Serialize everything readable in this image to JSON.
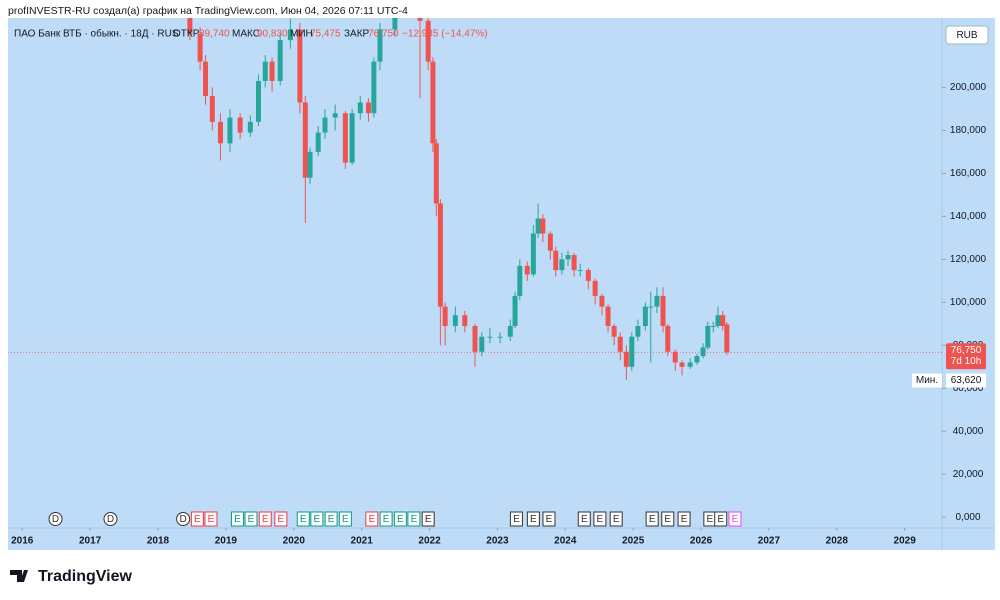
{
  "header": "profINVESTR-RU создал(а) график на TradingView.com, Июн 04, 2026 07:11 UTC-4",
  "brand": "TradingView",
  "chart_data": {
    "type": "candlestick",
    "title": "ПАО Банк ВТБ · обыкн. · 18Д · RUS",
    "legend": {
      "open_label": "ОТКР",
      "open": "89,740",
      "high_label": "МАКС",
      "high": "90,830",
      "low_label": "МИН",
      "low": "75,475",
      "close_label": "ЗАКР",
      "close": "76,750",
      "change": "−12,985 (−14,47%)"
    },
    "currency": "RUB",
    "up_color": "#26a69a",
    "down_color": "#ef5350",
    "x": [
      2018.47,
      2018.62,
      2018.7,
      2018.8,
      2018.92,
      2019.06,
      2019.21,
      2019.36,
      2019.48,
      2019.58,
      2019.68,
      2019.8,
      2019.95,
      2020.09,
      2020.17,
      2020.24,
      2020.36,
      2020.46,
      2020.61,
      2020.76,
      2020.86,
      2020.98,
      2021.1,
      2021.18,
      2021.27,
      2021.49,
      2021.71,
      2021.86,
      2021.98,
      2022.05,
      2022.1,
      2022.16,
      2022.23,
      2022.38,
      2022.52,
      2022.67,
      2022.77,
      2022.89,
      2023.04,
      2023.19,
      2023.26,
      2023.33,
      2023.44,
      2023.53,
      2023.6,
      2023.67,
      2023.78,
      2023.86,
      2023.95,
      2024.04,
      2024.13,
      2024.22,
      2024.34,
      2024.44,
      2024.54,
      2024.63,
      2024.72,
      2024.81,
      2024.9,
      2024.98,
      2025.07,
      2025.18,
      2025.26,
      2025.35,
      2025.44,
      2025.51,
      2025.62,
      2025.72,
      2025.84,
      2025.94,
      2026.03,
      2026.1,
      2026.18,
      2026.25,
      2026.32,
      2026.38
    ],
    "open": [
      236,
      225,
      212,
      196,
      184,
      174,
      186,
      179,
      184,
      203,
      212,
      203,
      222,
      227,
      193,
      158,
      170,
      179,
      186,
      188,
      165,
      188,
      193,
      188,
      212,
      227,
      240,
      245,
      231,
      212,
      174,
      146,
      98,
      89,
      94,
      89,
      77,
      84,
      84,
      84,
      89,
      103,
      117,
      113,
      132,
      139,
      132,
      124,
      115,
      120,
      122,
      115,
      115,
      110,
      103,
      98,
      89,
      84,
      77,
      70,
      84,
      89,
      98,
      98,
      103,
      89,
      77,
      72,
      70,
      72,
      75,
      79,
      89,
      89,
      94,
      89.74
    ],
    "high": [
      245,
      228,
      215,
      200,
      188,
      190,
      188,
      187,
      206,
      215,
      214,
      225,
      232,
      230,
      196,
      172,
      182,
      190,
      192,
      189,
      190,
      196,
      195,
      214,
      230,
      245,
      250,
      248,
      234,
      214,
      176,
      148,
      100,
      98,
      96,
      90,
      86,
      88,
      86,
      92,
      105,
      120,
      119,
      136,
      146,
      141,
      133,
      126,
      123,
      124,
      123,
      118,
      116,
      111,
      104,
      99,
      90,
      86,
      80,
      86,
      92,
      100,
      105,
      107,
      107,
      90,
      78,
      73,
      74,
      76,
      81,
      91,
      91,
      98,
      96,
      90.83
    ],
    "low": [
      222,
      208,
      192,
      180,
      166,
      170,
      176,
      177,
      182,
      200,
      198,
      201,
      218,
      188,
      137,
      155,
      168,
      176,
      180,
      162,
      164,
      185,
      184,
      186,
      208,
      224,
      235,
      195,
      208,
      170,
      140,
      80,
      80,
      86,
      86,
      70,
      75,
      81,
      81,
      82,
      88,
      101,
      110,
      112,
      130,
      128,
      120,
      112,
      113,
      117,
      112,
      112,
      106,
      99,
      94,
      86,
      80,
      73,
      64,
      68,
      82,
      87,
      72,
      95,
      86,
      75,
      68,
      66,
      69,
      71,
      74,
      78,
      86,
      88,
      87,
      75.475
    ],
    "close": [
      225,
      212,
      196,
      184,
      174,
      186,
      179,
      184,
      203,
      212,
      203,
      222,
      227,
      193,
      158,
      170,
      179,
      186,
      188,
      165,
      188,
      193,
      188,
      212,
      227,
      240,
      245,
      231,
      212,
      174,
      146,
      98,
      89,
      94,
      89,
      77,
      84,
      84,
      84,
      89,
      103,
      117,
      113,
      132,
      139,
      132,
      124,
      115,
      120,
      122,
      115,
      115,
      110,
      103,
      98,
      89,
      84,
      77,
      70,
      84,
      89,
      98,
      98,
      103,
      89,
      77,
      72,
      70,
      72,
      75,
      79,
      89,
      89,
      94,
      89,
      76.75
    ],
    "xlim": [
      2015.79,
      2029.55
    ],
    "xticks": [
      2016,
      2017,
      2018,
      2019,
      2020,
      2021,
      2022,
      2023,
      2024,
      2025,
      2026,
      2027,
      2028,
      2029
    ],
    "ylim": [
      -5,
      232.3
    ],
    "yticks": [
      {
        "value": 0,
        "label": "0,000"
      },
      {
        "value": 20,
        "label": "20,000"
      },
      {
        "value": 40,
        "label": "40,000"
      },
      {
        "value": 60,
        "label": "60,000"
      },
      {
        "value": 80,
        "label": "80,000"
      },
      {
        "value": 100,
        "label": "100,000"
      },
      {
        "value": 120,
        "label": "120,000"
      },
      {
        "value": 140,
        "label": "140,000"
      },
      {
        "value": 160,
        "label": "160,000"
      },
      {
        "value": 180,
        "label": "180,000"
      },
      {
        "value": 200,
        "label": "200,000"
      }
    ],
    "last_price": {
      "value": 76.75,
      "label": "76,750",
      "countdown": "7d 10h"
    },
    "min_marker": {
      "name": "Мин.",
      "value": 63.62,
      "label": "63,620"
    },
    "events": [
      {
        "x": 2016.49,
        "label": "D",
        "color": "#333333"
      },
      {
        "x": 2017.3,
        "label": "D",
        "color": "#333333"
      },
      {
        "x": 2018.37,
        "label": "D",
        "color": "#333333"
      },
      {
        "x": 2018.58,
        "label": "E",
        "color": "#f23645"
      },
      {
        "x": 2018.78,
        "label": "E",
        "color": "#f23645"
      },
      {
        "x": 2019.17,
        "label": "E",
        "color": "#089981"
      },
      {
        "x": 2019.37,
        "label": "E",
        "color": "#089981"
      },
      {
        "x": 2019.58,
        "label": "E",
        "color": "#f23645"
      },
      {
        "x": 2019.81,
        "label": "E",
        "color": "#f23645"
      },
      {
        "x": 2020.14,
        "label": "E",
        "color": "#089981"
      },
      {
        "x": 2020.34,
        "label": "E",
        "color": "#089981"
      },
      {
        "x": 2020.55,
        "label": "E",
        "color": "#089981"
      },
      {
        "x": 2020.76,
        "label": "E",
        "color": "#089981"
      },
      {
        "x": 2021.15,
        "label": "E",
        "color": "#f23645"
      },
      {
        "x": 2021.36,
        "label": "E",
        "color": "#089981"
      },
      {
        "x": 2021.57,
        "label": "E",
        "color": "#089981"
      },
      {
        "x": 2021.77,
        "label": "E",
        "color": "#089981"
      },
      {
        "x": 2021.98,
        "label": "E",
        "color": "#333333"
      },
      {
        "x": 2023.28,
        "label": "E",
        "color": "#333333"
      },
      {
        "x": 2023.53,
        "label": "E",
        "color": "#333333"
      },
      {
        "x": 2023.76,
        "label": "E",
        "color": "#333333"
      },
      {
        "x": 2024.28,
        "label": "E",
        "color": "#333333"
      },
      {
        "x": 2024.51,
        "label": "E",
        "color": "#333333"
      },
      {
        "x": 2024.75,
        "label": "E",
        "color": "#333333"
      },
      {
        "x": 2025.28,
        "label": "E",
        "color": "#333333"
      },
      {
        "x": 2025.51,
        "label": "E",
        "color": "#333333"
      },
      {
        "x": 2025.75,
        "label": "E",
        "color": "#333333"
      },
      {
        "x": 2026.13,
        "label": "E",
        "color": "#333333"
      },
      {
        "x": 2026.29,
        "label": "E",
        "color": "#333333"
      },
      {
        "x": 2026.5,
        "label": "E",
        "color": "#e040fb"
      }
    ]
  }
}
